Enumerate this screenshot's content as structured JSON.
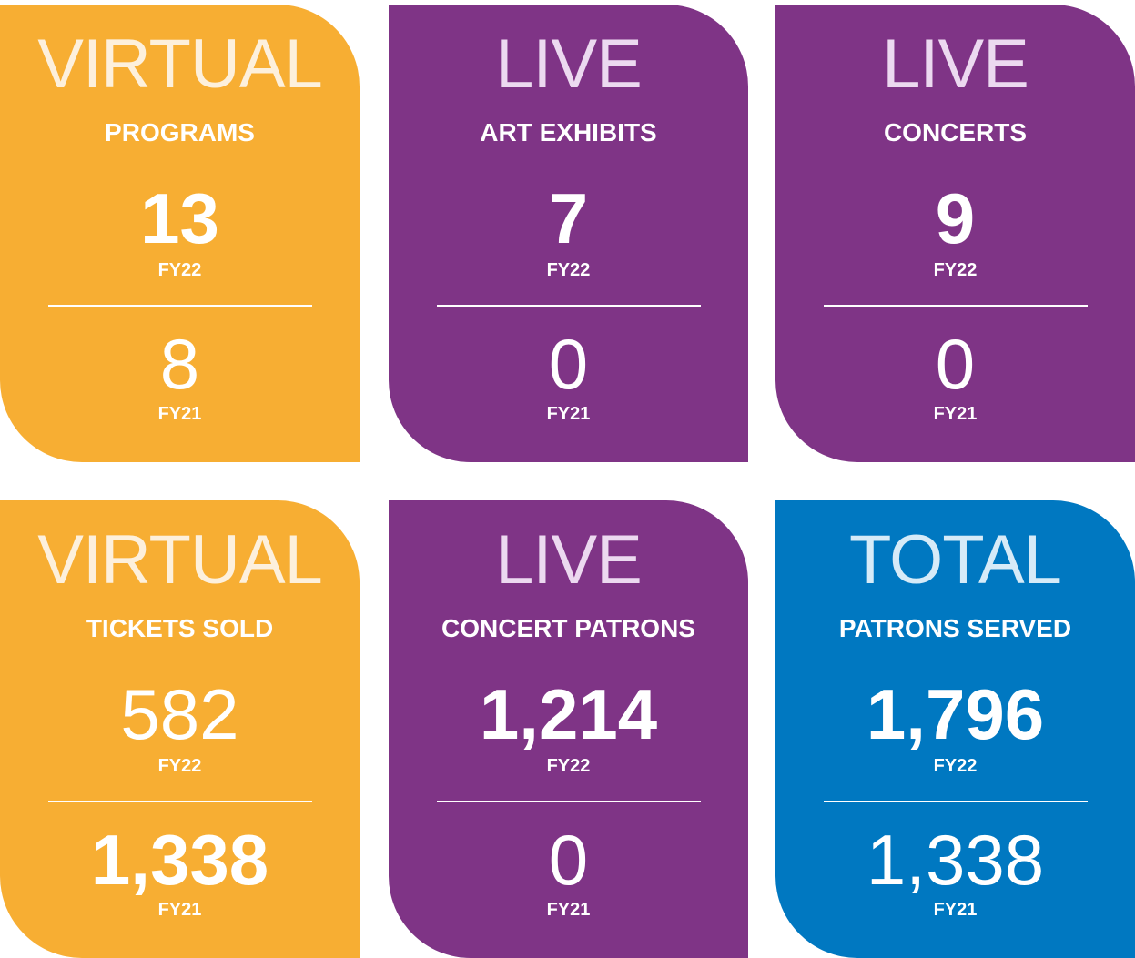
{
  "cards": [
    {
      "heading": "VIRTUAL",
      "subheading": "PROGRAMS",
      "fy22_value": "13",
      "fy22_label": "FY22",
      "fy21_value": "8",
      "fy21_label": "FY21"
    },
    {
      "heading": "LIVE",
      "subheading": "ART EXHIBITS",
      "fy22_value": "7",
      "fy22_label": "FY22",
      "fy21_value": "0",
      "fy21_label": "FY21"
    },
    {
      "heading": "LIVE",
      "subheading": "CONCERTS",
      "fy22_value": "9",
      "fy22_label": "FY22",
      "fy21_value": "0",
      "fy21_label": "FY21"
    },
    {
      "heading": "VIRTUAL",
      "subheading": "TICKETS SOLD",
      "fy22_value": "582",
      "fy22_label": "FY22",
      "fy21_value": "1,338",
      "fy21_label": "FY21"
    },
    {
      "heading": "LIVE",
      "subheading": "CONCERT PATRONS",
      "fy22_value": "1,214",
      "fy22_label": "FY22",
      "fy21_value": "0",
      "fy21_label": "FY21"
    },
    {
      "heading": "TOTAL",
      "subheading": "PATRONS SERVED",
      "fy22_value": "1,796",
      "fy22_label": "FY22",
      "fy21_value": "1,338",
      "fy21_label": "FY21"
    }
  ]
}
